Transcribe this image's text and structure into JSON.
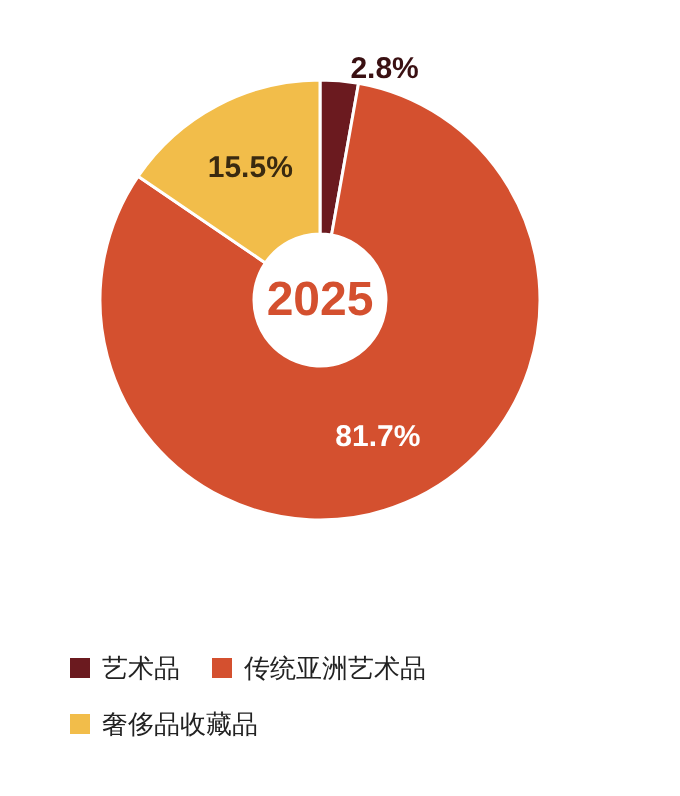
{
  "chart_data": {
    "type": "donut",
    "title": "2025",
    "categories": [
      "艺术品",
      "传统亚洲艺术品",
      "奢侈品收藏品"
    ],
    "values": [
      2.8,
      81.7,
      15.5
    ],
    "colors": [
      "#6b1a1f",
      "#d4502f",
      "#f2bd4a"
    ],
    "value_labels": [
      "2.8%",
      "81.7%",
      "15.5%"
    ],
    "legend": "bottom left"
  }
}
